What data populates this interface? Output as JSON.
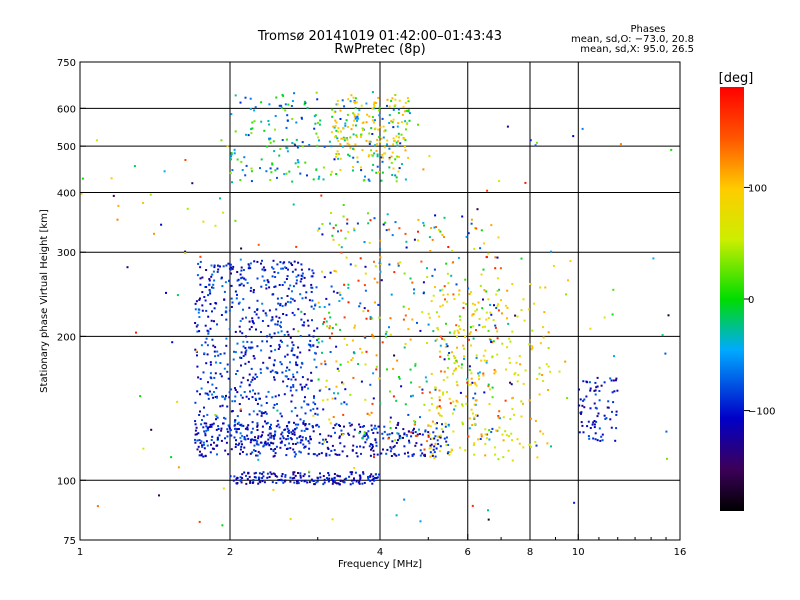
{
  "header": {
    "title": "Tromsø 20141019 01:42:00–01:43:43",
    "subtitle": "RwPretec (8p)",
    "phase_title": "Phases",
    "phase_o": "mean, sd,O: −73.0, 20.8",
    "phase_x": "mean, sd,X:  95.0, 26.5"
  },
  "chart_data": {
    "type": "scatter",
    "title": "Tromsø 20141019 01:42:00–01:43:43",
    "subtitle": "RwPretec (8p)",
    "xlabel": "Frequency [MHz]",
    "ylabel": "Stationary phase Virtual Height [km]",
    "xscale": "log",
    "yscale": "log",
    "xlim": [
      1,
      16
    ],
    "ylim": [
      75,
      750
    ],
    "xticks": [
      1,
      2,
      4,
      6,
      8,
      10,
      16
    ],
    "xtick_labels": [
      "1",
      "2",
      "4",
      "6",
      "8",
      "10",
      "16"
    ],
    "yticks": [
      75,
      100,
      200,
      300,
      400,
      500,
      600,
      750
    ],
    "ytick_labels": [
      "75",
      "100",
      "200",
      "300",
      "400",
      "500",
      "600",
      "750"
    ],
    "grid": true,
    "colorbar": {
      "label": "[deg]",
      "ticks": [
        100,
        0,
        -100
      ],
      "tick_labels": [
        "100",
        "0",
        "−100"
      ],
      "range": [
        -190,
        190
      ]
    },
    "clusters": [
      {
        "x": [
          2.0,
          4.6
        ],
        "y": [
          420,
          650
        ],
        "phase": [
          -95,
          40
        ],
        "n": 260
      },
      {
        "x": [
          3.2,
          4.6
        ],
        "y": [
          440,
          640
        ],
        "phase": [
          80,
          115
        ],
        "n": 120
      },
      {
        "x": [
          1.7,
          3.0
        ],
        "y": [
          118,
          290
        ],
        "phase": [
          -130,
          -60
        ],
        "n": 700
      },
      {
        "x": [
          2.0,
          4.0
        ],
        "y": [
          98,
          104
        ],
        "phase": [
          -140,
          -80
        ],
        "n": 180
      },
      {
        "x": [
          1.7,
          5.5
        ],
        "y": [
          112,
          132
        ],
        "phase": [
          -140,
          -70
        ],
        "n": 380
      },
      {
        "x": [
          3.0,
          7.0
        ],
        "y": [
          120,
          360
        ],
        "phase": [
          -120,
          180
        ],
        "n": 420
      },
      {
        "x": [
          5.0,
          8.8
        ],
        "y": [
          110,
          260
        ],
        "phase": [
          40,
          120
        ],
        "n": 240
      },
      {
        "x": [
          10.0,
          12.0
        ],
        "y": [
          120,
          165
        ],
        "phase": [
          -140,
          -70
        ],
        "n": 80
      },
      {
        "x": [
          1.0,
          16.0
        ],
        "y": [
          80,
          560
        ],
        "phase": [
          -180,
          180
        ],
        "n": 160
      }
    ]
  }
}
